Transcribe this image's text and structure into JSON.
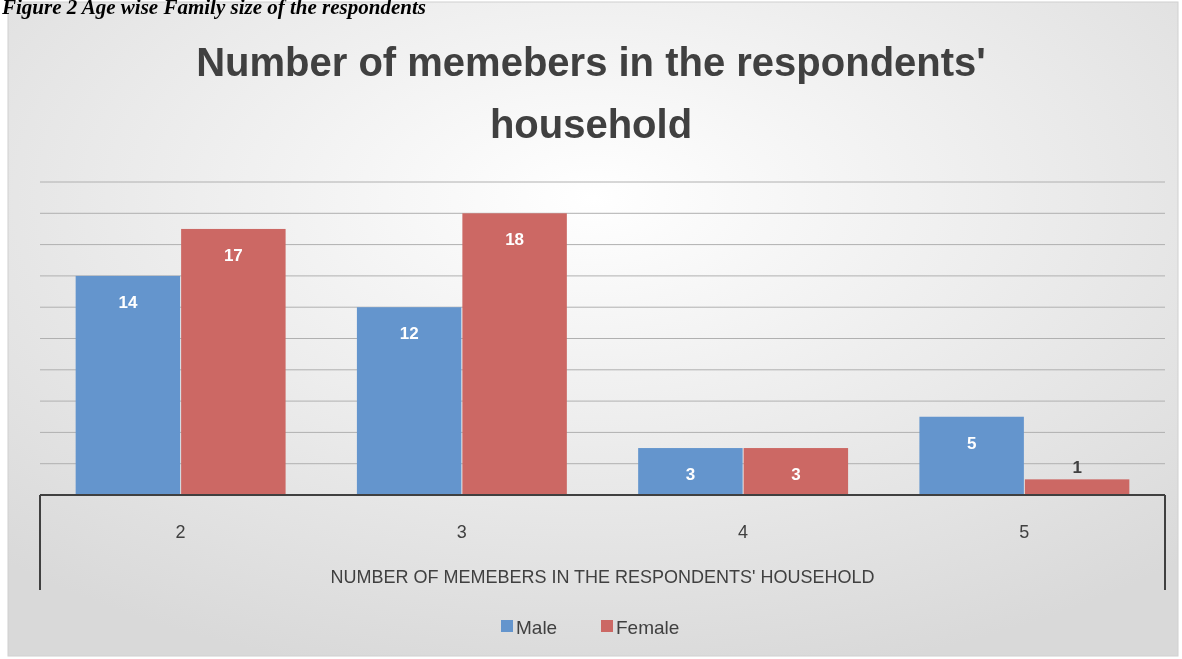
{
  "chart_data": {
    "type": "bar",
    "title": "Number of memebers in the respondents' household",
    "xlabel": "NUMBER OF MEMEBERS IN THE RESPONDENTS' HOUSEHOLD",
    "annotations": [
      "Figure 2 Age wise Family size of the respondents"
    ],
    "categories": [
      "2",
      "3",
      "4",
      "5"
    ],
    "series": [
      {
        "name": "Male",
        "color": "#6495cd",
        "values": [
          14,
          12,
          3,
          5
        ]
      },
      {
        "name": "Female",
        "color": "#cc6864",
        "values": [
          17,
          18,
          3,
          1
        ]
      }
    ],
    "ylim": [
      0,
      20
    ],
    "yticks": [
      {
        "value": 0,
        "label": null
      },
      {
        "value": 2,
        "label": null
      },
      {
        "value": 4,
        "label": null
      },
      {
        "value": 6,
        "label": null
      },
      {
        "value": 8,
        "label": null
      },
      {
        "value": 10,
        "label": null
      },
      {
        "value": 12,
        "label": null
      },
      {
        "value": 14,
        "label": null
      },
      {
        "value": 16,
        "label": null
      },
      {
        "value": 18,
        "label": null
      },
      {
        "value": 20,
        "label": null
      }
    ],
    "tick_labels": "x",
    "grid": "y",
    "data_labels": true,
    "legend": "bottom"
  }
}
